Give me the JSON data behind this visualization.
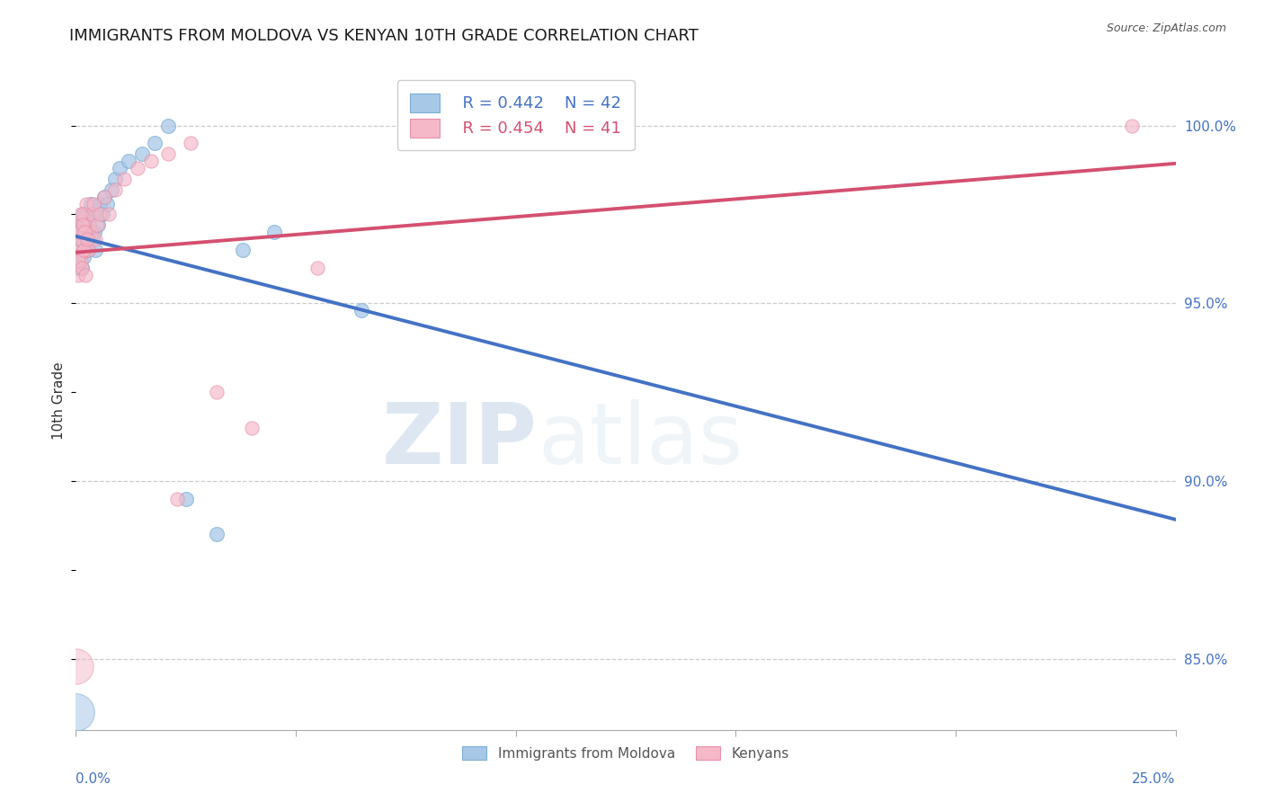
{
  "title": "IMMIGRANTS FROM MOLDOVA VS KENYAN 10TH GRADE CORRELATION CHART",
  "source": "Source: ZipAtlas.com",
  "ylabel": "10th Grade",
  "ylabel_right_labels": [
    "100.0%",
    "95.0%",
    "90.0%",
    "85.0%"
  ],
  "ylabel_right_values": [
    100.0,
    95.0,
    90.0,
    85.0
  ],
  "watermark_zip": "ZIP",
  "watermark_atlas": "atlas",
  "legend_r1": "R = 0.442",
  "legend_n1": "N = 42",
  "legend_r2": "R = 0.454",
  "legend_n2": "N = 41",
  "blue_color": "#a8c8e8",
  "blue_edge_color": "#7aafd4",
  "pink_color": "#f4b8c8",
  "pink_edge_color": "#e890a8",
  "blue_line_color": "#4472c4",
  "pink_line_color": "#d45070",
  "blue_x": [
    0.05,
    0.07,
    0.08,
    0.1,
    0.12,
    0.13,
    0.15,
    0.17,
    0.18,
    0.2,
    0.22,
    0.25,
    0.28,
    0.3,
    0.32,
    0.35,
    0.38,
    0.4,
    0.42,
    0.45,
    0.5,
    0.55,
    0.6,
    0.65,
    0.7,
    0.8,
    0.9,
    1.0,
    1.2,
    1.5,
    1.8,
    2.1,
    2.5,
    3.2,
    3.8,
    4.5,
    6.5,
    0.06,
    0.09,
    0.11,
    0.14,
    0.16
  ],
  "blue_y": [
    96.2,
    96.8,
    97.0,
    96.5,
    97.2,
    96.0,
    96.8,
    97.5,
    96.3,
    97.0,
    96.8,
    97.5,
    96.5,
    97.2,
    97.0,
    97.8,
    96.8,
    97.5,
    97.0,
    96.5,
    97.2,
    97.8,
    97.5,
    98.0,
    97.8,
    98.2,
    98.5,
    98.8,
    99.0,
    99.2,
    99.5,
    100.0,
    89.5,
    88.5,
    96.5,
    97.0,
    94.8,
    96.0,
    97.3,
    96.8,
    97.2,
    97.5
  ],
  "pink_x": [
    0.05,
    0.07,
    0.09,
    0.11,
    0.13,
    0.15,
    0.17,
    0.19,
    0.21,
    0.24,
    0.27,
    0.3,
    0.33,
    0.36,
    0.4,
    0.44,
    0.48,
    0.55,
    0.65,
    0.75,
    0.9,
    1.1,
    1.4,
    1.7,
    2.1,
    2.6,
    3.2,
    4.0,
    5.5,
    0.06,
    0.08,
    0.1,
    0.12,
    0.14,
    0.16,
    0.18,
    0.2,
    0.22,
    0.25,
    2.3,
    24.0
  ],
  "pink_y": [
    95.8,
    96.5,
    97.0,
    96.2,
    97.3,
    96.8,
    97.5,
    96.5,
    97.0,
    97.8,
    96.5,
    97.2,
    97.0,
    97.5,
    97.8,
    96.8,
    97.2,
    97.5,
    98.0,
    97.5,
    98.2,
    98.5,
    98.8,
    99.0,
    99.2,
    99.5,
    92.5,
    91.5,
    96.0,
    96.2,
    96.8,
    97.0,
    97.5,
    96.0,
    97.2,
    96.5,
    97.0,
    95.8,
    96.8,
    89.5,
    100.0
  ],
  "large_blue_x": [
    0.0
  ],
  "large_blue_y": [
    83.5
  ],
  "large_pink_x": [
    0.0
  ],
  "large_pink_y": [
    84.8
  ],
  "xmin": 0.0,
  "xmax": 25.0,
  "ymin": 83.0,
  "ymax": 101.5,
  "background_color": "#ffffff",
  "grid_color": "#cccccc",
  "title_fontsize": 13,
  "axis_label_fontsize": 11,
  "tick_label_fontsize": 11,
  "legend_fontsize": 13
}
